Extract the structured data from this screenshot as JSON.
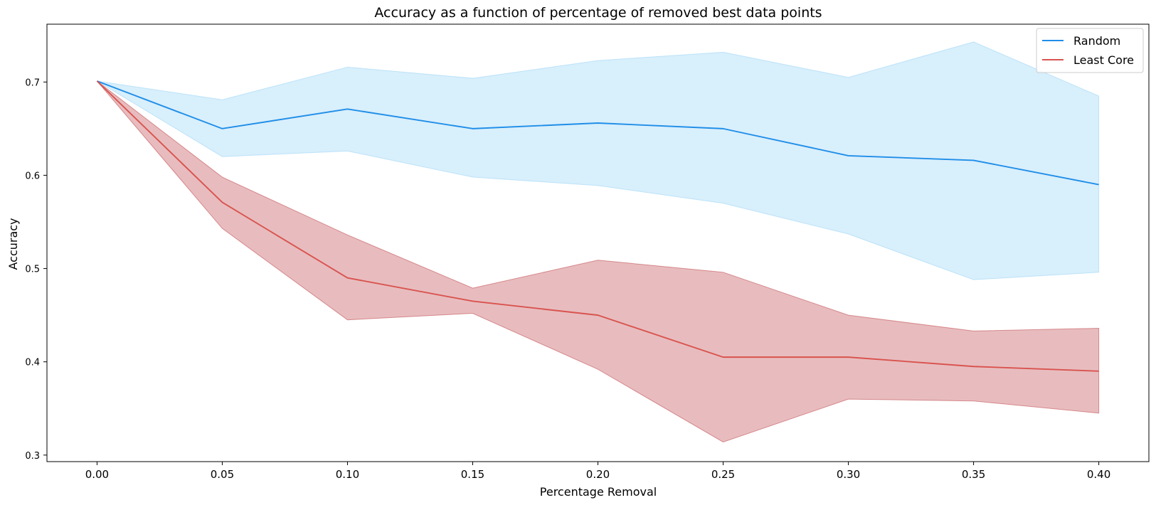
{
  "chart_data": {
    "type": "line",
    "title": "Accuracy as a function of percentage of removed best data points",
    "xlabel": "Percentage Removal",
    "ylabel": "Accuracy",
    "x": [
      0.0,
      0.05,
      0.1,
      0.15,
      0.2,
      0.25,
      0.3,
      0.35,
      0.4
    ],
    "x_tick_labels": [
      "0.00",
      "0.05",
      "0.10",
      "0.15",
      "0.20",
      "0.25",
      "0.30",
      "0.35",
      "0.40"
    ],
    "y_ticks": [
      0.3,
      0.4,
      0.5,
      0.6,
      0.7
    ],
    "y_tick_labels": [
      "0.3",
      "0.4",
      "0.5",
      "0.6",
      "0.7"
    ],
    "xlim": [
      -0.02,
      0.42
    ],
    "ylim": [
      0.293,
      0.762
    ],
    "grid": false,
    "legend_position": "top-right",
    "series": [
      {
        "name": "Random",
        "color": "#1f8ee8",
        "band_color": "#87cdf5",
        "values": [
          0.701,
          0.65,
          0.671,
          0.65,
          0.656,
          0.65,
          0.621,
          0.616,
          0.59
        ],
        "lower": [
          0.701,
          0.62,
          0.626,
          0.598,
          0.589,
          0.57,
          0.537,
          0.488,
          0.496
        ],
        "upper": [
          0.701,
          0.681,
          0.716,
          0.704,
          0.723,
          0.732,
          0.705,
          0.743,
          0.685
        ]
      },
      {
        "name": "Least Core",
        "color": "#d9534f",
        "band_color": "#c0464a",
        "values": [
          0.701,
          0.571,
          0.49,
          0.465,
          0.45,
          0.405,
          0.405,
          0.395,
          0.39
        ],
        "lower": [
          0.701,
          0.543,
          0.445,
          0.452,
          0.392,
          0.314,
          0.36,
          0.358,
          0.345
        ],
        "upper": [
          0.701,
          0.598,
          0.536,
          0.479,
          0.509,
          0.496,
          0.45,
          0.433,
          0.436
        ]
      }
    ]
  }
}
